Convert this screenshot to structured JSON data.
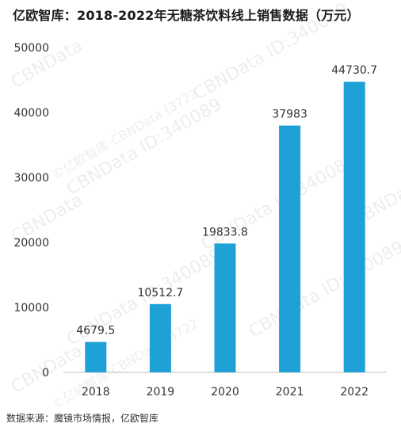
{
  "title": "亿欧智库：2018-2022年无糖茶饮料线上销售数据（万元）",
  "source": "数据来源：魔镜市场情报，亿欧智库",
  "watermark": {
    "brand": "CBNData",
    "id_text": "CBNData ID:340089",
    "cn_text": "©亿欧智库-CBNData (3722"
  },
  "colors": {
    "bar": "#1da1d6",
    "axis": "#bfbfbf",
    "text": "#333333"
  },
  "chart_data": {
    "type": "bar",
    "title": "亿欧智库：2018-2022年无糖茶饮料线上销售数据（万元）",
    "categories": [
      "2018",
      "2019",
      "2020",
      "2021",
      "2022"
    ],
    "values": [
      4679.5,
      10512.7,
      19833.8,
      37983,
      44730.7
    ],
    "value_labels": [
      "4679.5",
      "10512.7",
      "19833.8",
      "37983",
      "44730.7"
    ],
    "yticks": [
      "0",
      "10000",
      "20000",
      "30000",
      "40000",
      "50000"
    ],
    "ylim": [
      0,
      50000
    ],
    "xlabel": "",
    "ylabel": "",
    "grid": false,
    "legend": "none"
  }
}
